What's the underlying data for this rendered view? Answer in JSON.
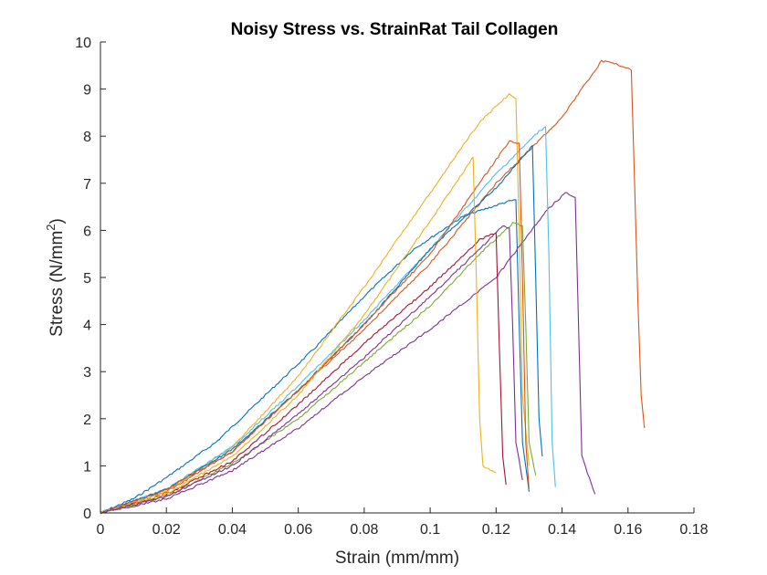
{
  "chart_data": {
    "type": "line",
    "title": "Noisy Stress vs. StrainRat Tail Collagen",
    "xlabel": "Strain (mm/mm)",
    "ylabel_main": "Stress (N/mm",
    "ylabel_sup": "2",
    "ylabel_close": ")",
    "xlim": [
      0,
      0.18
    ],
    "ylim": [
      0,
      10
    ],
    "xticks": [
      0,
      0.02,
      0.04,
      0.06,
      0.08,
      0.1,
      0.12,
      0.14,
      0.16,
      0.18
    ],
    "xtick_labels": [
      "0",
      "0.02",
      "0.04",
      "0.06",
      "0.08",
      "0.1",
      "0.12",
      "0.14",
      "0.16",
      "0.18"
    ],
    "yticks": [
      0,
      1,
      2,
      3,
      4,
      5,
      6,
      7,
      8,
      9,
      10
    ],
    "ytick_labels": [
      "0",
      "1",
      "2",
      "3",
      "4",
      "5",
      "6",
      "7",
      "8",
      "9",
      "10"
    ],
    "grid": false,
    "series": [
      {
        "color": "#0072BD",
        "points": [
          [
            0,
            0
          ],
          [
            0.01,
            0.3
          ],
          [
            0.02,
            0.75
          ],
          [
            0.035,
            1.5
          ],
          [
            0.05,
            2.5
          ],
          [
            0.065,
            3.5
          ],
          [
            0.08,
            4.6
          ],
          [
            0.095,
            5.6
          ],
          [
            0.11,
            6.3
          ],
          [
            0.123,
            6.6
          ],
          [
            0.126,
            6.65
          ],
          [
            0.127,
            4.0
          ],
          [
            0.128,
            1.5
          ],
          [
            0.13,
            0.45
          ]
        ]
      },
      {
        "color": "#D95319",
        "points": [
          [
            0,
            0
          ],
          [
            0.02,
            0.45
          ],
          [
            0.04,
            1.3
          ],
          [
            0.06,
            2.6
          ],
          [
            0.08,
            3.9
          ],
          [
            0.1,
            5.3
          ],
          [
            0.12,
            7.0
          ],
          [
            0.14,
            8.4
          ],
          [
            0.152,
            9.6
          ],
          [
            0.158,
            9.5
          ],
          [
            0.161,
            9.4
          ],
          [
            0.162,
            7.0
          ],
          [
            0.163,
            4.5
          ],
          [
            0.164,
            2.5
          ],
          [
            0.165,
            1.8
          ]
        ]
      },
      {
        "color": "#EDB120",
        "points": [
          [
            0,
            0
          ],
          [
            0.02,
            0.45
          ],
          [
            0.04,
            1.4
          ],
          [
            0.06,
            2.9
          ],
          [
            0.08,
            4.8
          ],
          [
            0.1,
            6.8
          ],
          [
            0.115,
            8.3
          ],
          [
            0.124,
            8.9
          ],
          [
            0.126,
            8.8
          ],
          [
            0.127,
            6.0
          ],
          [
            0.128,
            2.5
          ],
          [
            0.13,
            1.0
          ]
        ]
      },
      {
        "color": "#7E2F8E",
        "points": [
          [
            0,
            0
          ],
          [
            0.02,
            0.3
          ],
          [
            0.04,
            0.9
          ],
          [
            0.06,
            1.8
          ],
          [
            0.08,
            2.9
          ],
          [
            0.1,
            3.9
          ],
          [
            0.12,
            5.0
          ],
          [
            0.135,
            6.4
          ],
          [
            0.141,
            6.8
          ],
          [
            0.144,
            6.7
          ],
          [
            0.145,
            4.0
          ],
          [
            0.146,
            1.2
          ],
          [
            0.15,
            0.4
          ]
        ]
      },
      {
        "color": "#77AC30",
        "points": [
          [
            0,
            0
          ],
          [
            0.02,
            0.35
          ],
          [
            0.04,
            1.05
          ],
          [
            0.06,
            2.0
          ],
          [
            0.07,
            2.6
          ],
          [
            0.08,
            3.2
          ],
          [
            0.1,
            4.4
          ],
          [
            0.115,
            5.5
          ],
          [
            0.125,
            6.15
          ],
          [
            0.128,
            6.1
          ],
          [
            0.129,
            4.0
          ],
          [
            0.13,
            1.5
          ],
          [
            0.132,
            0.8
          ]
        ]
      },
      {
        "color": "#4DBEEE",
        "points": [
          [
            0,
            0
          ],
          [
            0.02,
            0.5
          ],
          [
            0.04,
            1.4
          ],
          [
            0.06,
            2.7
          ],
          [
            0.08,
            4.1
          ],
          [
            0.1,
            5.6
          ],
          [
            0.12,
            7.2
          ],
          [
            0.133,
            8.1
          ],
          [
            0.135,
            8.2
          ],
          [
            0.136,
            5.5
          ],
          [
            0.137,
            1.5
          ],
          [
            0.138,
            0.55
          ]
        ]
      },
      {
        "color": "#A2142F",
        "points": [
          [
            0,
            0
          ],
          [
            0.02,
            0.4
          ],
          [
            0.04,
            1.1
          ],
          [
            0.06,
            2.3
          ],
          [
            0.08,
            3.6
          ],
          [
            0.1,
            4.8
          ],
          [
            0.115,
            5.8
          ],
          [
            0.12,
            5.95
          ],
          [
            0.121,
            3.5
          ],
          [
            0.122,
            1.2
          ],
          [
            0.123,
            0.6
          ]
        ]
      },
      {
        "color": "#0072BD",
        "points": [
          [
            0,
            0
          ],
          [
            0.02,
            0.5
          ],
          [
            0.04,
            1.35
          ],
          [
            0.06,
            2.6
          ],
          [
            0.08,
            4.0
          ],
          [
            0.1,
            5.6
          ],
          [
            0.12,
            6.9
          ],
          [
            0.131,
            7.8
          ],
          [
            0.132,
            5.0
          ],
          [
            0.133,
            2.0
          ],
          [
            0.134,
            1.2
          ]
        ]
      },
      {
        "color": "#D95319",
        "points": [
          [
            0,
            0
          ],
          [
            0.02,
            0.5
          ],
          [
            0.04,
            1.3
          ],
          [
            0.06,
            2.6
          ],
          [
            0.08,
            4.0
          ],
          [
            0.1,
            5.5
          ],
          [
            0.115,
            7.0
          ],
          [
            0.124,
            7.9
          ],
          [
            0.127,
            7.85
          ],
          [
            0.128,
            5.0
          ],
          [
            0.129,
            1.5
          ],
          [
            0.13,
            0.5
          ]
        ]
      },
      {
        "color": "#EDB120",
        "points": [
          [
            0,
            0
          ],
          [
            0.02,
            0.4
          ],
          [
            0.04,
            1.2
          ],
          [
            0.06,
            2.5
          ],
          [
            0.08,
            4.2
          ],
          [
            0.1,
            6.2
          ],
          [
            0.113,
            7.55
          ],
          [
            0.114,
            5.0
          ],
          [
            0.115,
            2.0
          ],
          [
            0.116,
            1.0
          ],
          [
            0.12,
            0.85
          ]
        ]
      },
      {
        "color": "#7E2F8E",
        "points": [
          [
            0,
            0
          ],
          [
            0.02,
            0.35
          ],
          [
            0.04,
            1.0
          ],
          [
            0.06,
            2.1
          ],
          [
            0.08,
            3.3
          ],
          [
            0.1,
            4.6
          ],
          [
            0.115,
            5.6
          ],
          [
            0.122,
            6.1
          ],
          [
            0.124,
            6.05
          ],
          [
            0.125,
            4.0
          ],
          [
            0.126,
            1.5
          ],
          [
            0.128,
            0.7
          ]
        ]
      }
    ]
  }
}
